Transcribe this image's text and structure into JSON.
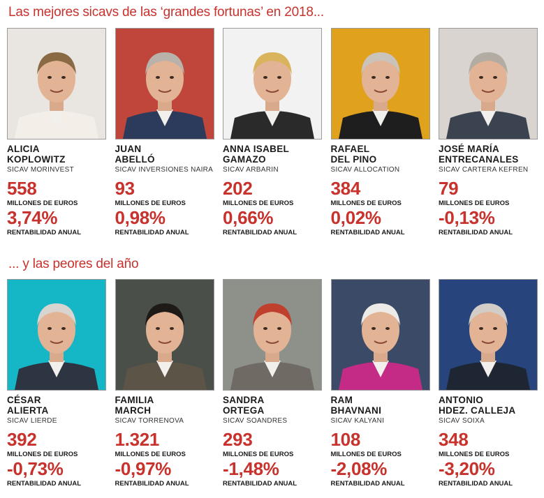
{
  "header_best": "Las mejores sicavs de las ‘grandes fortunas’ en 2018...",
  "header_worst": "... y las peores del año",
  "best": [
    {
      "name": [
        "ALICIA",
        "KOPLOWITZ"
      ],
      "sicav": "SICAV MORINVEST",
      "amount": "558",
      "amount_unit": "MILLONES DE EUROS",
      "return": "3,74%",
      "return_unit": "RENTABILIDAD ANUAL"
    },
    {
      "name": [
        "JUAN",
        "ABELLÓ"
      ],
      "sicav": "SICAV INVERSIONES NAIRA",
      "amount": "93",
      "amount_unit": "MILLONES DE EUROS",
      "return": "0,98%",
      "return_unit": "RENTABILIDAD ANUAL"
    },
    {
      "name": [
        "ANNA ISABEL",
        "GAMAZO"
      ],
      "sicav": "SICAV ARBARIN",
      "amount": "202",
      "amount_unit": "MILLONES DE EUROS",
      "return": "0,66%",
      "return_unit": "RENTABILIDAD ANUAL"
    },
    {
      "name": [
        "RAFAEL",
        "DEL PINO"
      ],
      "sicav": "SICAV ALLOCATION",
      "amount": "384",
      "amount_unit": "MILLONES DE EUROS",
      "return": "0,02%",
      "return_unit": "RENTABILIDAD ANUAL"
    },
    {
      "name": [
        "JOSÉ MARÍA",
        "ENTRECANALES"
      ],
      "sicav": "SICAV CARTERA KEFREN",
      "amount": "79",
      "amount_unit": "MILLONES DE EUROS",
      "return": "-0,13%",
      "return_unit": "RENTABILIDAD ANUAL"
    }
  ],
  "worst": [
    {
      "name": [
        "CÉSAR",
        "ALIERTA"
      ],
      "sicav": "SICAV LIERDE",
      "amount": "392",
      "amount_unit": "MILLONES DE EUROS",
      "return": "-0,73%",
      "return_unit": "RENTABILIDAD ANUAL"
    },
    {
      "name": [
        "FAMILIA",
        "MARCH"
      ],
      "sicav": "SICAV TORRENOVA",
      "amount": "1.321",
      "amount_unit": "MILLONES DE EUROS",
      "return": "-0,97%",
      "return_unit": "RENTABILIDAD ANUAL"
    },
    {
      "name": [
        "SANDRA",
        "ORTEGA"
      ],
      "sicav": "SICAV SOANDRES",
      "amount": "293",
      "amount_unit": "MILLONES DE EUROS",
      "return": "-1,48%",
      "return_unit": "RENTABILIDAD ANUAL"
    },
    {
      "name": [
        "RAM",
        "BHAVNANI"
      ],
      "sicav": "SICAV KALYANI",
      "amount": "108",
      "amount_unit": "MILLONES DE EUROS",
      "return": "-2,08%",
      "return_unit": "RENTABILIDAD ANUAL"
    },
    {
      "name": [
        "ANTONIO",
        "HDEZ. CALLEJA"
      ],
      "sicav": "SICAV SOIXA",
      "amount": "348",
      "amount_unit": "MILLONES DE EUROS",
      "return": "-3,20%",
      "return_unit": "RENTABILIDAD ANUAL"
    }
  ],
  "colors": {
    "accent": "#c8322d",
    "text": "#1a1a1a"
  },
  "photo_backgrounds": {
    "best": [
      "#e9e6e2",
      "#c0463b",
      "#f2f2f2",
      "#e0a21c",
      "#d9d4cf"
    ],
    "worst": [
      "#15b7c6",
      "#4a4f49",
      "#8d918a",
      "#3b4a66",
      "#27447d"
    ]
  },
  "photo_shirts": {
    "best": [
      "#f3efe8",
      "#2c3a5c",
      "#2a2a2a",
      "#1e1e1e",
      "#3b4250"
    ],
    "worst": [
      "#2d3442",
      "#5d5448",
      "#6f6a63",
      "#c42b86",
      "#1f2633"
    ]
  },
  "photo_hair": {
    "best": [
      "#8a6a45",
      "#b8b2aa",
      "#d9b45c",
      "#c9c3bb",
      "#b3aca3"
    ],
    "worst": [
      "#d8d4cf",
      "#1e1a17",
      "#c0402e",
      "#ecebe7",
      "#d2cdc6"
    ]
  }
}
